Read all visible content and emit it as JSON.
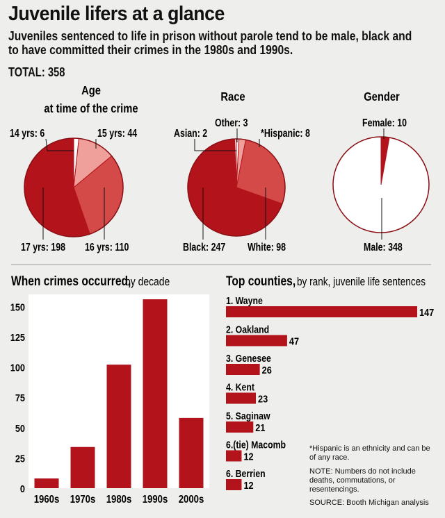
{
  "header": {
    "title": "Juvenile lifers at a glance",
    "subtitle": "Juveniles sentenced to life in prison without parole tend to be male, black and to have committed their crimes in the 1980s and 1990s.",
    "total": "TOTAL: 358"
  },
  "colors": {
    "dark_red": "#b3141c",
    "mid_red": "#d44a48",
    "light_red": "#f0a09a",
    "white": "#ffffff",
    "background": "#eeeeec"
  },
  "chart_data": [
    {
      "type": "pie",
      "title_line1": "Age",
      "title_line2": "at time of the crime",
      "slices": [
        {
          "label": "14 yrs: 6",
          "value": 6,
          "color": "#ffffff"
        },
        {
          "label": "15 yrs: 44",
          "value": 44,
          "color": "#f0a09a"
        },
        {
          "label": "16 yrs: 110",
          "value": 110,
          "color": "#d44a48"
        },
        {
          "label": "17 yrs: 198",
          "value": 198,
          "color": "#b3141c"
        }
      ]
    },
    {
      "type": "pie",
      "title": "Race",
      "slices": [
        {
          "label": "Other: 3",
          "value": 3,
          "color": "#ffffff"
        },
        {
          "label": "*Hispanic: 8",
          "value": 8,
          "color": "#f0a09a"
        },
        {
          "label": "White: 98",
          "value": 98,
          "color": "#d44a48"
        },
        {
          "label": "Black: 247",
          "value": 247,
          "color": "#b3141c"
        },
        {
          "label": "Asian: 2",
          "value": 2,
          "color": "#ffffff"
        }
      ]
    },
    {
      "type": "pie",
      "title": "Gender",
      "slices": [
        {
          "label": "Female: 10",
          "value": 10,
          "color": "#b3141c"
        },
        {
          "label": "Male: 348",
          "value": 348,
          "color": "#ffffff"
        }
      ]
    },
    {
      "type": "bar",
      "title": "When crimes occurred,",
      "subtitle": "by decade",
      "categories": [
        "1960s",
        "1970s",
        "1980s",
        "1990s",
        "2000s"
      ],
      "values": [
        8,
        34,
        102,
        156,
        58
      ],
      "ylim": [
        0,
        160
      ],
      "yticks": [
        0,
        25,
        50,
        75,
        100,
        125,
        150
      ],
      "grid": false
    },
    {
      "type": "bar",
      "orientation": "horizontal",
      "title": "Top counties,",
      "subtitle": "by rank, juvenile life sentences",
      "categories": [
        "1. Wayne",
        "2. Oakland",
        "3. Genesee",
        "4. Kent",
        "5. Saginaw",
        "6.(tie) Macomb",
        "6. Berrien"
      ],
      "values": [
        147,
        47,
        26,
        23,
        21,
        12,
        12
      ]
    }
  ],
  "notes": {
    "hispanic": "*Hispanic is an ethnicity and can be of any race.",
    "numbers": "NOTE: Numbers do not include deaths, commutations, or resentencings.",
    "source": "SOURCE: Booth Michigan analysis"
  }
}
